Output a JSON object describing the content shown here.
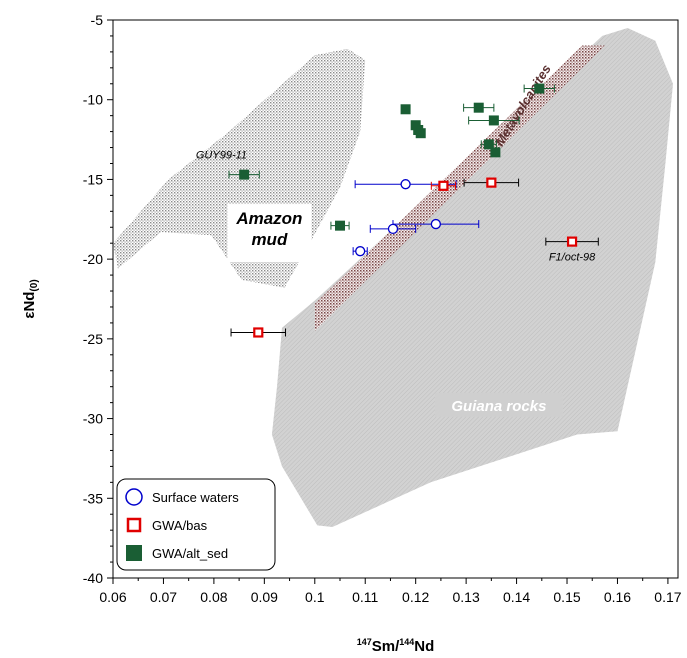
{
  "chart_data": {
    "type": "scatter",
    "title": "",
    "xlabel": {
      "sup": "147",
      "mid": "Sm/",
      "sup2": "144",
      "tail": "Nd"
    },
    "ylabel": {
      "main": "εNd",
      "sub": "(0)"
    },
    "xlim": [
      0.06,
      0.172
    ],
    "ylim": [
      -40,
      -5
    ],
    "xticks": [
      0.06,
      0.07,
      0.08,
      0.09,
      0.1,
      0.11,
      0.12,
      0.13,
      0.14,
      0.15,
      0.16,
      0.17
    ],
    "xtick_labels": [
      "0.06",
      "0.07",
      "0.08",
      "0.09",
      "0.1",
      "0.11",
      "0.12",
      "0.13",
      "0.14",
      "0.15",
      "0.16",
      "0.17"
    ],
    "yticks": [
      -40,
      -35,
      -30,
      -25,
      -20,
      -15,
      -10,
      -5
    ],
    "ytick_labels": [
      "-40",
      "-35",
      "-30",
      "-25",
      "-20",
      "-15",
      "-10",
      "-5"
    ],
    "grid": false,
    "legend_position": "bottom-left",
    "regions": [
      {
        "name": "Amazon mud",
        "label": "Amazon\nmud",
        "fill": "#9a9a9a",
        "pattern": "dots",
        "polygon": [
          [
            0.06,
            -19.0
          ],
          [
            0.071,
            -15.0
          ],
          [
            0.083,
            -12.0
          ],
          [
            0.1,
            -7.2
          ],
          [
            0.1065,
            -6.8
          ],
          [
            0.11,
            -7.5
          ],
          [
            0.109,
            -12.0
          ],
          [
            0.105,
            -15.5
          ],
          [
            0.099,
            -19.0
          ],
          [
            0.094,
            -21.8
          ],
          [
            0.0855,
            -21.3
          ],
          [
            0.0795,
            -18.5
          ],
          [
            0.0695,
            -18.3
          ],
          [
            0.061,
            -20.6
          ]
        ],
        "label_at": [
          0.091,
          -18.3
        ]
      },
      {
        "name": "Metavolcanites",
        "label": "Metavolcanites",
        "fill": "#8c5a5a",
        "pattern": "dots",
        "polygon": [
          [
            0.1,
            -22.8
          ],
          [
            0.153,
            -6.6
          ],
          [
            0.1575,
            -6.6
          ],
          [
            0.1,
            -24.5
          ]
        ],
        "label_at": [
          0.142,
          -10.5
        ]
      },
      {
        "name": "Guiana rocks",
        "label": "Guiana rocks",
        "fill": "#c8c8c8",
        "pattern": "hatch",
        "polygon": [
          [
            0.0925,
            -28.0
          ],
          [
            0.0935,
            -24.3
          ],
          [
            0.1,
            -22.6
          ],
          [
            0.157,
            -6.0
          ],
          [
            0.162,
            -5.5
          ],
          [
            0.1675,
            -6.3
          ],
          [
            0.171,
            -9.0
          ],
          [
            0.1695,
            -14.0
          ],
          [
            0.1675,
            -20.2
          ],
          [
            0.16,
            -30.8
          ],
          [
            0.152,
            -31.0
          ],
          [
            0.123,
            -34.0
          ],
          [
            0.1035,
            -36.8
          ],
          [
            0.1005,
            -36.7
          ],
          [
            0.0935,
            -33.0
          ],
          [
            0.0915,
            -31.0
          ]
        ],
        "label_at": [
          0.1365,
          -29.2
        ]
      }
    ],
    "series": [
      {
        "name": "Surface waters",
        "marker": "circle-open",
        "color": "#0000cc",
        "points": [
          {
            "x": 0.118,
            "y": -15.3,
            "xerr": 0.01
          },
          {
            "x": 0.124,
            "y": -17.8,
            "xerr": 0.0085
          },
          {
            "x": 0.1155,
            "y": -18.1,
            "xerr": 0.0045
          },
          {
            "x": 0.109,
            "y": -19.5,
            "xerr": 0.0014
          }
        ]
      },
      {
        "name": "GWA/bas",
        "marker": "square-open",
        "color": "#e00000",
        "points": [
          {
            "x": 0.1255,
            "y": -15.4,
            "xerr": 0.0024
          },
          {
            "x": 0.135,
            "y": -15.2,
            "xerr": 0.0054,
            "errColor": "#000000"
          },
          {
            "x": 0.151,
            "y": -18.9,
            "xerr": 0.0052,
            "errColor": "#000000"
          },
          {
            "x": 0.0888,
            "y": -24.6,
            "xerr": 0.0054,
            "errColor": "#000000"
          }
        ]
      },
      {
        "name": "GWA/alt_sed",
        "marker": "square-filled",
        "color": "#1a5e34",
        "points": [
          {
            "x": 0.1445,
            "y": -9.3,
            "xerr": 0.003
          },
          {
            "x": 0.1325,
            "y": -10.5,
            "xerr": 0.003
          },
          {
            "x": 0.118,
            "y": -10.6,
            "xerr": 0.0006
          },
          {
            "x": 0.1355,
            "y": -11.3,
            "xerr": 0.005
          },
          {
            "x": 0.12,
            "y": -11.6,
            "xerr": 0.0006
          },
          {
            "x": 0.1205,
            "y": -11.9,
            "xerr": 0.0006
          },
          {
            "x": 0.121,
            "y": -12.1,
            "xerr": 0.0006
          },
          {
            "x": 0.1345,
            "y": -12.8,
            "xerr": 0.0015
          },
          {
            "x": 0.1358,
            "y": -13.3,
            "xerr": 0.0006
          },
          {
            "x": 0.086,
            "y": -14.7,
            "xerr": 0.003
          },
          {
            "x": 0.105,
            "y": -17.9,
            "xerr": 0.0018
          }
        ]
      }
    ],
    "annotations": [
      {
        "text": "GUY99-11",
        "at": [
          0.0815,
          -13.7
        ]
      },
      {
        "text": "F1/oct-98",
        "at": [
          0.151,
          -20.1
        ]
      }
    ]
  }
}
